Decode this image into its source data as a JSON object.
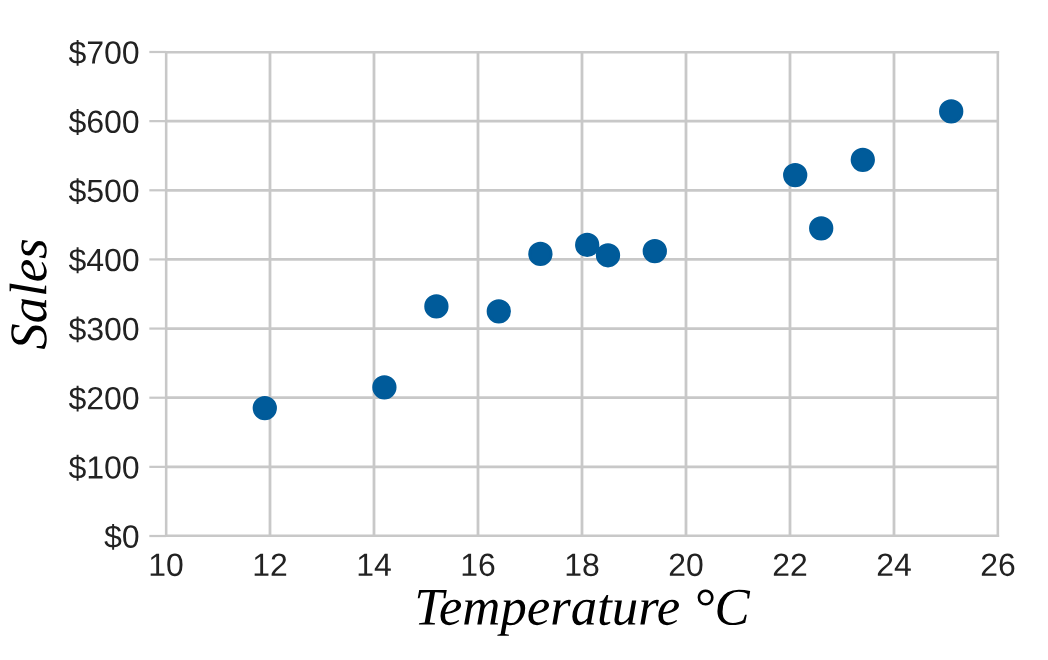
{
  "chart_data": {
    "type": "scatter",
    "xlabel": "Temperature °C",
    "ylabel": "Sales",
    "x": [
      14.2,
      16.4,
      11.9,
      15.2,
      18.5,
      22.1,
      19.4,
      25.1,
      23.4,
      18.1,
      22.6,
      17.2
    ],
    "series": [
      {
        "color": "#005b9a",
        "values": [
          215,
          325,
          185,
          332,
          406,
          522,
          412,
          614,
          544,
          421,
          445,
          408
        ]
      }
    ],
    "xlim": [
      10,
      26
    ],
    "xticks": [
      10,
      12,
      14,
      16,
      18,
      20,
      22,
      24,
      26
    ],
    "ylim": [
      0,
      700
    ],
    "yticks": [
      {
        "value": 0,
        "label": "$0"
      },
      {
        "value": 100,
        "label": "$100"
      },
      {
        "value": 200,
        "label": "$200"
      },
      {
        "value": 300,
        "label": "$300"
      },
      {
        "value": 400,
        "label": "$400"
      },
      {
        "value": 500,
        "label": "$500"
      },
      {
        "value": 600,
        "label": "$600"
      },
      {
        "value": 700,
        "label": "$700"
      }
    ],
    "grid": true,
    "marker": "circle",
    "legend": false
  }
}
